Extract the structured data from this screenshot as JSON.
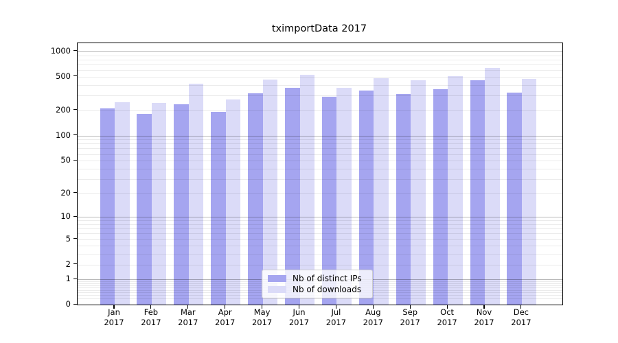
{
  "title": "tximportData 2017",
  "colors": {
    "ips_bar": "#a5a5f0",
    "downloads_bar": "#dbdbf8",
    "grid_major": "#b5b5b5",
    "grid_minor": "#e9e9e9",
    "axis": "#000000",
    "legend_border": "#cccccc"
  },
  "legend": {
    "items": [
      {
        "label": "Nb of distinct IPs",
        "color_key": "ips_bar"
      },
      {
        "label": "Nb of downloads",
        "color_key": "downloads_bar"
      }
    ]
  },
  "y_axis": {
    "tick_labels": [
      "1000",
      "500",
      "200",
      "100",
      "50",
      "20",
      "10",
      "5",
      "2",
      "1",
      "0"
    ]
  },
  "x_axis": {
    "months": [
      "Jan",
      "Feb",
      "Mar",
      "Apr",
      "May",
      "Jun",
      "Jul",
      "Aug",
      "Sep",
      "Oct",
      "Nov",
      "Dec"
    ],
    "year": "2017"
  },
  "chart_data": {
    "type": "bar",
    "title": "tximportData 2017",
    "scale": "log1p (y position proportional to log10(value+1))",
    "categories": [
      "Jan 2017",
      "Feb 2017",
      "Mar 2017",
      "Apr 2017",
      "May 2017",
      "Jun 2017",
      "Jul 2017",
      "Aug 2017",
      "Sep 2017",
      "Oct 2017",
      "Nov 2017",
      "Dec 2017"
    ],
    "series": [
      {
        "name": "Nb of distinct IPs",
        "values": [
          210,
          180,
          235,
          190,
          315,
          370,
          290,
          340,
          310,
          355,
          455,
          322
        ]
      },
      {
        "name": "Nb of downloads",
        "values": [
          250,
          245,
          415,
          270,
          465,
          530,
          370,
          480,
          455,
          510,
          630,
          470
        ]
      }
    ],
    "y_ticks": [
      0,
      1,
      2,
      5,
      10,
      20,
      50,
      100,
      200,
      500,
      1000
    ],
    "ylim": [
      0,
      1250
    ],
    "grid": "horizontal; major lines at 1,10,100,1000; log minor lines; drawn over bars",
    "legend_position": "lower center inside plot"
  }
}
